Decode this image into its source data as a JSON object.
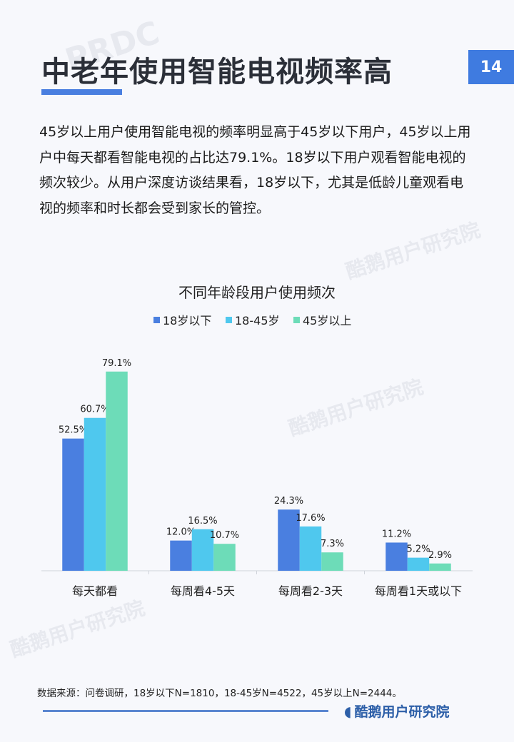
{
  "page_number": "14",
  "title": "中老年使用智能电视频率高",
  "body": "45岁以上用户使用智能电视的频率明显高于45岁以下用户，45岁以上用户中每天都看智能电视的占比达79.1%。18岁以下用户观看智能电视的频次较少。从用户深度访谈结果看，18岁以下，尤其是低龄儿童观看电视的频率和时长都会受到家长的管控。",
  "watermarks": [
    "PRDC",
    "酷鹅用户研究院"
  ],
  "chart_data": {
    "type": "bar",
    "title": "不同年龄段用户使用频次",
    "categories": [
      "每天都看",
      "每周看4-5天",
      "每周看2-3天",
      "每周看1天或以下"
    ],
    "series": [
      {
        "name": "18岁以下",
        "color": "#4a7fe0",
        "values": [
          52.5,
          12.0,
          24.3,
          11.2
        ]
      },
      {
        "name": "18-45岁",
        "color": "#4fc8ee",
        "values": [
          60.7,
          16.5,
          17.6,
          5.2
        ]
      },
      {
        "name": "45岁以上",
        "color": "#6ddcb8",
        "values": [
          79.1,
          10.7,
          7.3,
          2.9
        ]
      }
    ],
    "value_format": "%",
    "legend_position": "top",
    "grid": false,
    "ylim": [
      0,
      80
    ]
  },
  "source": "数据来源：问卷调研，18岁以下N=1810，18-45岁N=4522，45岁以上N=2444。",
  "footer_logo": "酷鹅用户研究院"
}
